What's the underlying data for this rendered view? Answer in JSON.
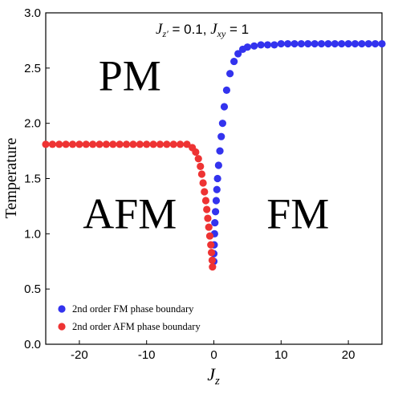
{
  "chart_data": {
    "type": "scatter",
    "annotation": {
      "parts": [
        {
          "text": "J",
          "style": "italic"
        },
        {
          "text": "z′",
          "style": "sub"
        },
        {
          "text": " = 0.1, ",
          "style": "normal"
        },
        {
          "text": "J",
          "style": "italic"
        },
        {
          "text": "xy",
          "style": "sub"
        },
        {
          "text": " = 1",
          "style": "normal"
        }
      ]
    },
    "xlabel": {
      "main": "J",
      "sub": "z"
    },
    "ylabel": "Temperature",
    "xlim": [
      -25,
      25
    ],
    "ylim": [
      0.0,
      3.0
    ],
    "xticks": [
      -20,
      -10,
      0,
      10,
      20
    ],
    "xtick_labels": [
      "-20",
      "-10",
      "0",
      "10",
      "20"
    ],
    "yticks": [
      0.0,
      0.5,
      1.0,
      1.5,
      2.0,
      2.5,
      3.0
    ],
    "ytick_labels": [
      "0.0",
      "0.5",
      "1.0",
      "1.5",
      "2.0",
      "2.5",
      "3.0"
    ],
    "grid": false,
    "legend_position": "bottom-left",
    "region_labels": [
      {
        "text": "PM",
        "x": -12.5,
        "y": 2.3
      },
      {
        "text": "AFM",
        "x": -12.5,
        "y": 1.05
      },
      {
        "text": "FM",
        "x": 12.5,
        "y": 1.05
      }
    ],
    "series": [
      {
        "name": "2nd order FM phase boundary",
        "color": "#3333ee",
        "points": [
          [
            0.0,
            0.75
          ],
          [
            0.0,
            0.82
          ],
          [
            0.05,
            0.9
          ],
          [
            0.1,
            1.0
          ],
          [
            0.15,
            1.1
          ],
          [
            0.25,
            1.2
          ],
          [
            0.35,
            1.3
          ],
          [
            0.45,
            1.4
          ],
          [
            0.55,
            1.5
          ],
          [
            0.7,
            1.62
          ],
          [
            0.9,
            1.75
          ],
          [
            1.1,
            1.88
          ],
          [
            1.3,
            2.0
          ],
          [
            1.55,
            2.15
          ],
          [
            1.9,
            2.3
          ],
          [
            2.4,
            2.45
          ],
          [
            3.0,
            2.56
          ],
          [
            3.6,
            2.63
          ],
          [
            4.3,
            2.67
          ],
          [
            5.0,
            2.69
          ],
          [
            6.0,
            2.7
          ],
          [
            7.0,
            2.71
          ],
          [
            8.0,
            2.71
          ],
          [
            9.0,
            2.71
          ],
          [
            10.0,
            2.72
          ],
          [
            11.0,
            2.72
          ],
          [
            12.0,
            2.72
          ],
          [
            13.0,
            2.72
          ],
          [
            14.0,
            2.72
          ],
          [
            15.0,
            2.72
          ],
          [
            16.0,
            2.72
          ],
          [
            17.0,
            2.72
          ],
          [
            18.0,
            2.72
          ],
          [
            19.0,
            2.72
          ],
          [
            20.0,
            2.72
          ],
          [
            21.0,
            2.72
          ],
          [
            22.0,
            2.72
          ],
          [
            23.0,
            2.72
          ],
          [
            24.0,
            2.72
          ],
          [
            25.0,
            2.72
          ]
        ]
      },
      {
        "name": "2nd order AFM phase boundary",
        "color": "#ee3333",
        "points": [
          [
            -25.0,
            1.81
          ],
          [
            -24.0,
            1.81
          ],
          [
            -23.0,
            1.81
          ],
          [
            -22.0,
            1.81
          ],
          [
            -21.0,
            1.81
          ],
          [
            -20.0,
            1.81
          ],
          [
            -19.0,
            1.81
          ],
          [
            -18.0,
            1.81
          ],
          [
            -17.0,
            1.81
          ],
          [
            -16.0,
            1.81
          ],
          [
            -15.0,
            1.81
          ],
          [
            -14.0,
            1.81
          ],
          [
            -13.0,
            1.81
          ],
          [
            -12.0,
            1.81
          ],
          [
            -11.0,
            1.81
          ],
          [
            -10.0,
            1.81
          ],
          [
            -9.0,
            1.81
          ],
          [
            -8.0,
            1.81
          ],
          [
            -7.0,
            1.81
          ],
          [
            -6.0,
            1.81
          ],
          [
            -5.0,
            1.81
          ],
          [
            -4.0,
            1.81
          ],
          [
            -3.2,
            1.78
          ],
          [
            -2.7,
            1.74
          ],
          [
            -2.3,
            1.68
          ],
          [
            -2.0,
            1.61
          ],
          [
            -1.8,
            1.54
          ],
          [
            -1.6,
            1.46
          ],
          [
            -1.4,
            1.38
          ],
          [
            -1.2,
            1.3
          ],
          [
            -1.05,
            1.22
          ],
          [
            -0.9,
            1.14
          ],
          [
            -0.75,
            1.06
          ],
          [
            -0.6,
            0.98
          ],
          [
            -0.45,
            0.9
          ],
          [
            -0.35,
            0.83
          ],
          [
            -0.25,
            0.76
          ],
          [
            -0.2,
            0.7
          ]
        ]
      }
    ]
  }
}
